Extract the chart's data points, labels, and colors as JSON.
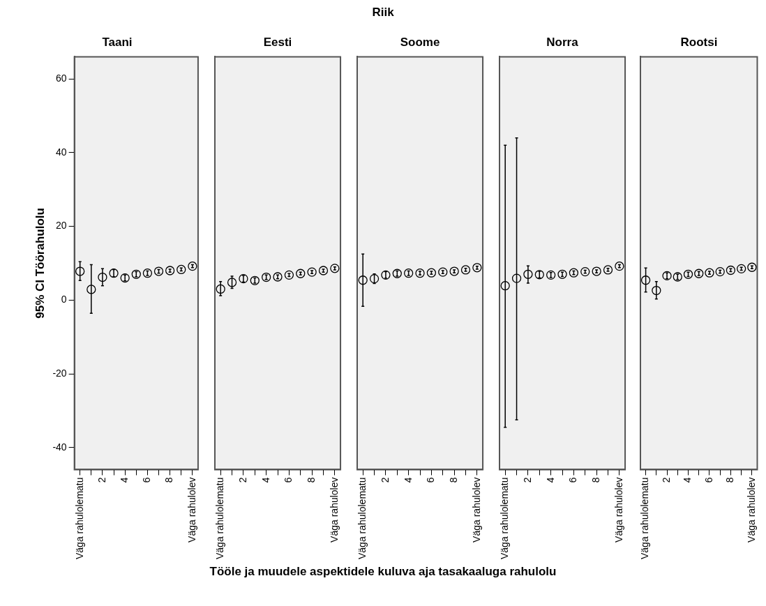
{
  "chart_data": [
    {
      "type": "scatter",
      "title": "Taani",
      "ylabel": "95% CI Töörahulolu",
      "xlabel": "Tööle ja muudele aspektidele kuluva aja tasakaaluga rahulolu",
      "annotations": [
        "Riik"
      ],
      "categories": [
        "Väga rahulolematu",
        null,
        "2",
        null,
        "4",
        null,
        "6",
        null,
        "8",
        null,
        "Väga rahulolev"
      ],
      "values": [
        7.8,
        2.9,
        6.2,
        7.3,
        6.0,
        7.0,
        7.3,
        7.8,
        8.0,
        8.3,
        9.2
      ],
      "errors": [
        [
          5.3,
          10.4
        ],
        [
          -3.6,
          9.6
        ],
        [
          3.9,
          8.5
        ],
        1.0,
        0.8,
        0.7,
        0.6,
        0.5,
        0.4,
        0.4,
        0.4
      ],
      "color": "#000000",
      "marker": "circle",
      "ylim": [
        -46,
        66
      ],
      "yticks": [
        -40,
        -20,
        0,
        20,
        40,
        60
      ],
      "grid": false,
      "legend": false
    },
    {
      "type": "scatter",
      "title": "Eesti",
      "categories": [
        "Väga rahulolematu",
        null,
        "2",
        null,
        "4",
        null,
        "6",
        null,
        "8",
        null,
        "Väga rahulolev"
      ],
      "values": [
        3.0,
        4.8,
        5.8,
        5.3,
        6.2,
        6.3,
        6.8,
        7.2,
        7.6,
        8.0,
        8.6
      ],
      "errors": [
        [
          1.2,
          5.0
        ],
        [
          3.2,
          6.5
        ],
        0.9,
        0.7,
        0.6,
        0.5,
        0.4,
        0.4,
        0.4,
        0.4,
        0.4
      ],
      "color": "#000000",
      "marker": "circle",
      "ylim": [
        -46,
        66
      ],
      "yticks": [
        -40,
        -20,
        0,
        20,
        40,
        60
      ],
      "grid": false,
      "legend": false,
      "tick_labels": "x"
    },
    {
      "type": "scatter",
      "title": "Soome",
      "categories": [
        "Väga rahulolematu",
        null,
        "2",
        null,
        "4",
        null,
        "6",
        null,
        "8",
        null,
        "Väga rahulolev"
      ],
      "values": [
        5.4,
        5.8,
        6.8,
        7.2,
        7.3,
        7.3,
        7.4,
        7.6,
        7.8,
        8.2,
        8.8
      ],
      "errors": [
        [
          -1.7,
          12.5
        ],
        [
          4.5,
          7.1
        ],
        0.9,
        0.7,
        0.6,
        0.5,
        0.4,
        0.4,
        0.4,
        0.4,
        0.4
      ],
      "color": "#000000",
      "marker": "circle",
      "ylim": [
        -46,
        66
      ],
      "yticks": [
        -40,
        -20,
        0,
        20,
        40,
        60
      ],
      "grid": false,
      "legend": false,
      "tick_labels": "x"
    },
    {
      "type": "scatter",
      "title": "Norra",
      "categories": [
        "Väga rahulolematu",
        null,
        "2",
        null,
        "4",
        null,
        "6",
        null,
        "8",
        null,
        "Väga rahulolev"
      ],
      "values": [
        3.9,
        5.9,
        7.0,
        6.9,
        6.8,
        7.0,
        7.4,
        7.7,
        7.8,
        8.2,
        9.2
      ],
      "errors": [
        [
          -34.5,
          42
        ],
        [
          -32.5,
          44
        ],
        [
          4.6,
          9.3
        ],
        0.9,
        0.7,
        0.6,
        0.5,
        0.4,
        0.4,
        0.4,
        0.4
      ],
      "color": "#000000",
      "marker": "circle",
      "ylim": [
        -46,
        66
      ],
      "yticks": [
        -40,
        -20,
        0,
        20,
        40,
        60
      ],
      "grid": false,
      "legend": false,
      "tick_labels": "x"
    },
    {
      "type": "scatter",
      "title": "Rootsi",
      "categories": [
        "Väga rahulolematu",
        null,
        "2",
        null,
        "4",
        null,
        "6",
        null,
        "8",
        null,
        "Väga rahulolev"
      ],
      "values": [
        5.4,
        2.6,
        6.6,
        6.3,
        7.0,
        7.2,
        7.4,
        7.7,
        8.1,
        8.5,
        8.9
      ],
      "errors": [
        [
          2.2,
          8.7
        ],
        [
          0.3,
          5.0
        ],
        0.8,
        0.7,
        0.6,
        0.5,
        0.4,
        0.4,
        0.4,
        0.4,
        0.4
      ],
      "color": "#000000",
      "marker": "circle",
      "ylim": [
        -46,
        66
      ],
      "yticks": [
        -40,
        -20,
        0,
        20,
        40,
        60
      ],
      "grid": false,
      "legend": false,
      "tick_labels": "x"
    }
  ]
}
